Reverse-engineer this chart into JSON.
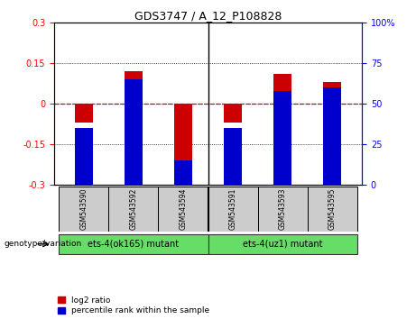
{
  "title": "GDS3747 / A_12_P108828",
  "samples": [
    "GSM543590",
    "GSM543592",
    "GSM543594",
    "GSM543591",
    "GSM543593",
    "GSM543595"
  ],
  "log2_ratios": [
    -0.07,
    0.12,
    -0.22,
    -0.07,
    0.11,
    0.08
  ],
  "percentile_ranks": [
    35,
    65,
    15,
    35,
    58,
    60
  ],
  "ylim_left": [
    -0.3,
    0.3
  ],
  "ylim_right": [
    0,
    100
  ],
  "yticks_left": [
    -0.3,
    -0.15,
    0,
    0.15,
    0.3
  ],
  "yticks_right": [
    0,
    25,
    50,
    75,
    100
  ],
  "groups": [
    {
      "label": "ets-4(ok165) mutant",
      "color": "#66dd66",
      "start": 0,
      "end": 3
    },
    {
      "label": "ets-4(uz1) mutant",
      "color": "#66dd66",
      "start": 3,
      "end": 6
    }
  ],
  "bar_width": 0.35,
  "log2_color": "#cc0000",
  "percentile_color": "#0000cc",
  "zero_line_color": "#cc0000",
  "background_plot": "#ffffff",
  "background_label": "#cccccc",
  "legend_log2": "log2 ratio",
  "legend_percentile": "percentile rank within the sample",
  "genotype_label": "genotype/variation"
}
